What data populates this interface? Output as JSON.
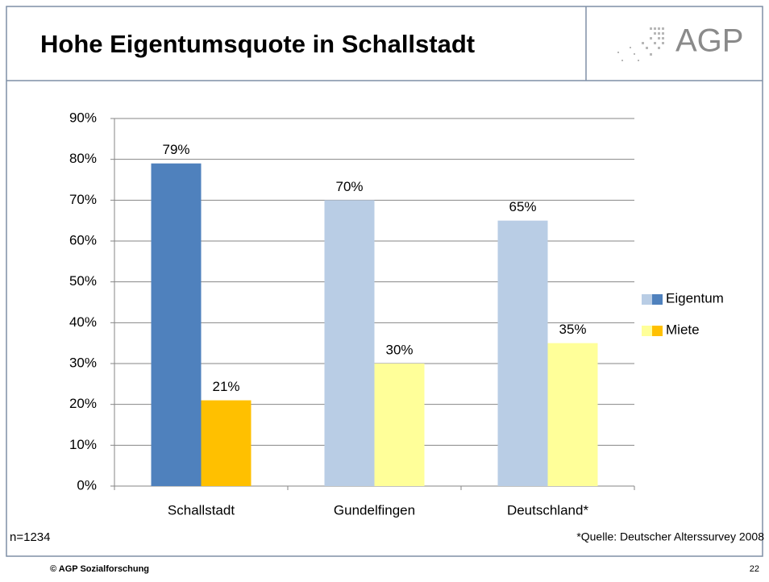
{
  "header": {
    "title": "Hohe Eigentumsquote in Schallstadt",
    "logo": "AGP"
  },
  "chart_data": {
    "type": "bar",
    "categories": [
      "Schallstadt",
      "Gundelfingen",
      "Deutschland*"
    ],
    "series": [
      {
        "name": "Eigentum",
        "colors": [
          "#4f81bd",
          "#b9cde5",
          "#b9cde5"
        ],
        "values": [
          79,
          70,
          65
        ],
        "value_labels": [
          "79%",
          "70%",
          "65%"
        ]
      },
      {
        "name": "Miete",
        "colors": [
          "#ffc000",
          "#ffff99",
          "#ffff99"
        ],
        "values": [
          21,
          30,
          35
        ],
        "value_labels": [
          "21%",
          "30%",
          "35%"
        ]
      }
    ],
    "ylim": [
      0,
      90
    ],
    "yticks": [
      {
        "value": 0,
        "label": "0%"
      },
      {
        "value": 10,
        "label": "10%"
      },
      {
        "value": 20,
        "label": "20%"
      },
      {
        "value": 30,
        "label": "30%"
      },
      {
        "value": 40,
        "label": "40%"
      },
      {
        "value": 50,
        "label": "50%"
      },
      {
        "value": 60,
        "label": "60%"
      },
      {
        "value": 70,
        "label": "70%"
      },
      {
        "value": 80,
        "label": "80%"
      },
      {
        "value": 90,
        "label": "90%"
      }
    ],
    "grid": true,
    "legend": "right"
  },
  "notes": {
    "sample": "n=1234",
    "source": "*Quelle: Deutscher Alterssurvey 2008"
  },
  "footer": {
    "copyright": "© AGP Sozialforschung",
    "page": "22"
  }
}
